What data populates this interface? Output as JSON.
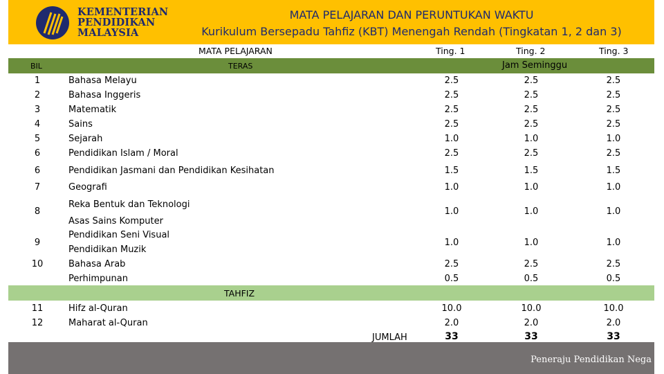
{
  "header": {
    "logo_lines": [
      "KEMENTERIAN",
      "PENDIDIKAN",
      "MALAYSIA"
    ],
    "title": "MATA PELAJARAN DAN PERUNTUKAN WAKTU",
    "subtitle": "Kurikulum Bersepadu Tahfiz (KBT) Menengah Rendah (Tingkatan 1, 2 dan 3)"
  },
  "columns": {
    "subject_group": "MATA PELAJARAN",
    "ting1": "Ting. 1",
    "ting2": "Ting. 2",
    "ting3": "Ting. 3",
    "bil": "BIL",
    "teras": "TERAS",
    "jam": "Jam Seminggu"
  },
  "rows": [
    {
      "bil": "1",
      "subject": "Bahasa Melayu",
      "t1": "2.5",
      "t2": "2.5",
      "t3": "2.5"
    },
    {
      "bil": "2",
      "subject": "Bahasa Inggeris",
      "t1": "2.5",
      "t2": "2.5",
      "t3": "2.5"
    },
    {
      "bil": "3",
      "subject": "Matematik",
      "t1": "2.5",
      "t2": "2.5",
      "t3": "2.5"
    },
    {
      "bil": "4",
      "subject": "Sains",
      "t1": "2.5",
      "t2": "2.5",
      "t3": "2.5"
    },
    {
      "bil": "5",
      "subject": "Sejarah",
      "t1": "1.0",
      "t2": "1.0",
      "t3": "1.0"
    },
    {
      "bil": "6",
      "subject": "Pendidikan Islam / Moral",
      "t1": "2.5",
      "t2": "2.5",
      "t3": "2.5"
    },
    {
      "bil": "6",
      "subject": "Pendidikan  Jasmani dan Pendidikan Kesihatan",
      "t1": "1.5",
      "t2": "1.5",
      "t3": "1.5"
    },
    {
      "bil": "7",
      "subject": "Geografi",
      "t1": "1.0",
      "t2": "1.0",
      "t3": "1.0"
    }
  ],
  "elective": {
    "bil8": "8",
    "bil9": "9",
    "bil10": "10",
    "reka": "Reka Bentuk dan Teknologi",
    "asas": "Asas Sains Komputer",
    "seni": "Pendidikan Seni Visual",
    "muzik": "Pendidikan Muzik",
    "arab": "Bahasa Arab",
    "perhimpunan": "Perhimpunan",
    "r8": {
      "t1": "1.0",
      "t2": "1.0",
      "t3": "1.0"
    },
    "r9": {
      "t1": "1.0",
      "t2": "1.0",
      "t3": "1.0"
    },
    "r10": {
      "t1": "2.5",
      "t2": "2.5",
      "t3": "2.5"
    },
    "rp": {
      "t1": "0.5",
      "t2": "0.5",
      "t3": "0.5"
    }
  },
  "tahfiz": {
    "label": "TAHFIZ",
    "rows": [
      {
        "bil": "11",
        "subject": "Hifz al-Quran",
        "t1": "10.0",
        "t2": "10.0",
        "t3": "10.0"
      },
      {
        "bil": "12",
        "subject": "Maharat al-Quran",
        "t1": "2.0",
        "t2": "2.0",
        "t3": "2.0"
      }
    ]
  },
  "total": {
    "label": "JUMLAH",
    "t1": "33",
    "t2": "33",
    "t3": "33"
  },
  "footer": {
    "text": "Peneraju Pendidikan Nega"
  },
  "colors": {
    "header": "#ffc000",
    "band_dark": "#6b8e3b",
    "band_light": "#a9d08e",
    "footer": "#757171"
  }
}
